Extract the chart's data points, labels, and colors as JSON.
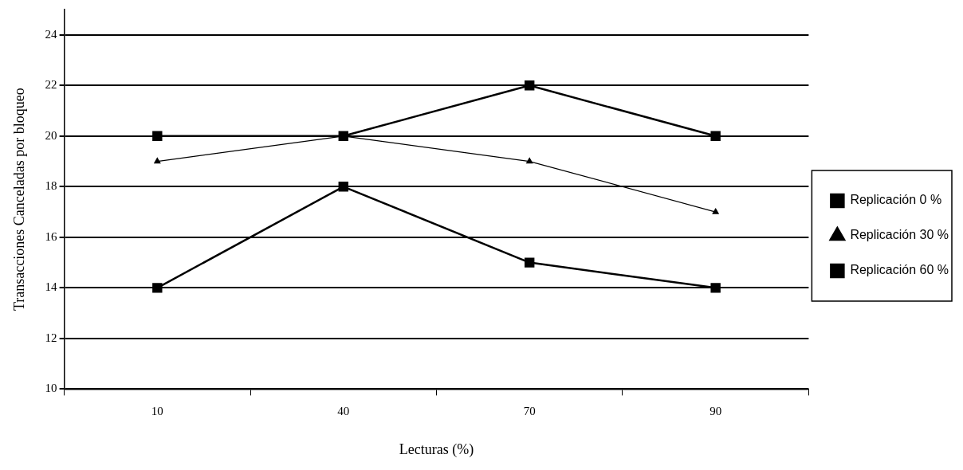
{
  "chart_data": {
    "type": "line",
    "xlabel": "Lecturas (%)",
    "ylabel": "Transacciones Canceladas por bloqueo",
    "categories": [
      "10",
      "40",
      "70",
      "90"
    ],
    "series": [
      {
        "name": "Replicación 0 %",
        "color": "#000000",
        "marker": "square",
        "values": [
          14,
          18,
          15,
          14
        ]
      },
      {
        "name": "Replicación 30 %",
        "color": "#000000",
        "marker": "triangle",
        "values": [
          19,
          20,
          19,
          17
        ]
      },
      {
        "name": "Replicación 60 %",
        "color": "#000000",
        "marker": "square",
        "values": [
          20,
          20,
          22,
          20
        ]
      }
    ],
    "ylim": [
      10,
      25
    ],
    "yticks": [
      10,
      12,
      14,
      16,
      18,
      20,
      22,
      24
    ],
    "grid": "y",
    "legend": "right",
    "line_style": "solid"
  }
}
